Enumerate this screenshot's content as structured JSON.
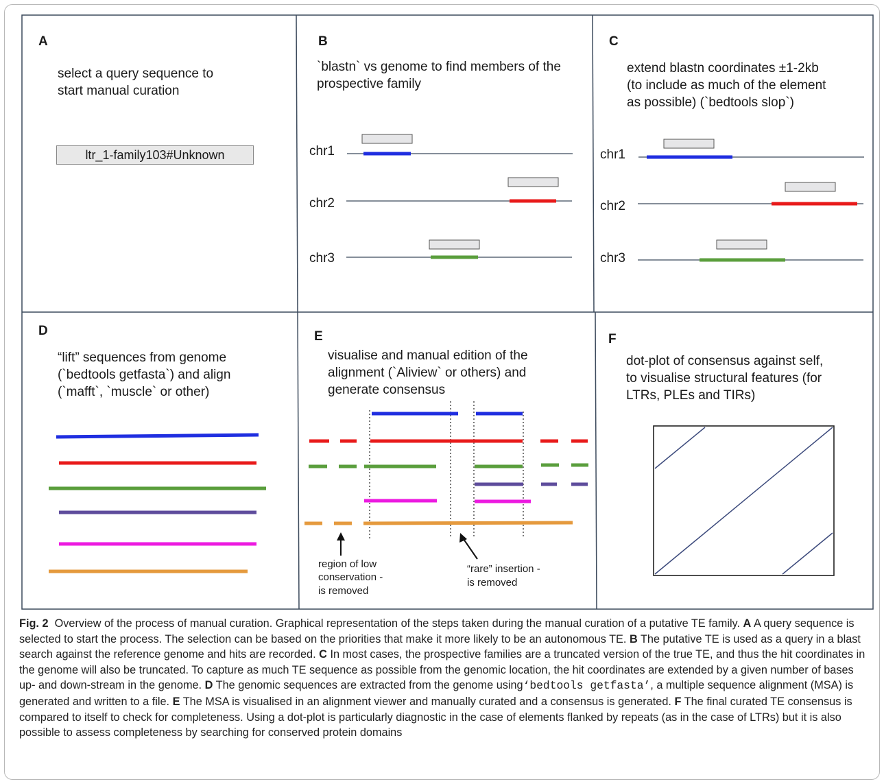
{
  "figure": {
    "panels": {
      "A": {
        "letter": "A",
        "lines": [
          "select a query sequence to",
          "start manual curation"
        ],
        "query_label": "ltr_1-family103#Unknown"
      },
      "B": {
        "letter": "B",
        "lines": [
          "`blastn` vs genome to find members of the",
          "prospective family"
        ],
        "chromosomes": [
          "chr1",
          "chr2",
          "chr3"
        ]
      },
      "C": {
        "letter": "C",
        "lines": [
          "extend blastn coordinates ±1-2kb",
          "(to include as much of the element",
          "as possible) (`bedtools slop`)"
        ],
        "chromosomes": [
          "chr1",
          "chr2",
          "chr3"
        ]
      },
      "D": {
        "letter": "D",
        "lines": [
          "“lift” sequences from genome",
          "(`bedtools getfasta`) and align",
          "(`mafft`, `muscle` or other)"
        ]
      },
      "E": {
        "letter": "E",
        "lines": [
          "visualise and manual edition of the",
          "alignment (`Aliview` or others)  and",
          "generate consensus"
        ],
        "annotation_low": [
          "region of low",
          "conservation -",
          "is removed"
        ],
        "annotation_rare": [
          "“rare” insertion -",
          "is removed"
        ]
      },
      "F": {
        "letter": "F",
        "lines": [
          "dot-plot of consensus against self,",
          "to visualise structural features (for",
          "LTRs, PLEs and TIRs)"
        ]
      }
    },
    "colors": {
      "blue": "#1f2ee0",
      "red": "#e81a1a",
      "green": "#5a9e3c",
      "purple": "#5e4c9c",
      "magenta": "#ec1ae0",
      "orange": "#e59a3e",
      "axis_line": "#3c4a5c",
      "hit_box": "#e6e6e8"
    },
    "caption": {
      "label": "Fig. 2",
      "title": "Overview of the process of manual curation. Graphical representation of the steps taken during the manual curation of a putative TE family.",
      "A_letter": "A",
      "A_text": "A query sequence is selected to start the process. The selection can be based on the priorities that make it more likely to be an autonomous TE.",
      "B_letter": "B",
      "B_text": "The putative TE is used as a query in a blast search against the reference genome and hits are recorded.",
      "C_letter": "C",
      "C_text": "In most cases, the prospective families are a truncated version of the true TE, and thus the hit coordinates in the genome will also be truncated. To capture as much TE sequence as possible from the genomic location, the hit coordinates are extended by a given number of bases up- and down-stream in the genome.",
      "D_letter": "D",
      "D_text_1": "The genomic sequences are extracted from the genome using",
      "D_code": "‘bedtools getfasta’",
      "D_text_2": ", a multiple sequence alignment (MSA) is generated and written to a file.",
      "E_letter": "E",
      "E_text": "The MSA is visualised in an alignment viewer and manually curated and a consensus is generated.",
      "F_letter": "F",
      "F_text": "The final curated TE consensus is compared to itself to check for completeness. Using a dot-plot is particularly diagnostic in the case of elements flanked by repeats (as in the case of LTRs) but it is also possible to assess completeness by searching for conserved protein domains"
    }
  }
}
